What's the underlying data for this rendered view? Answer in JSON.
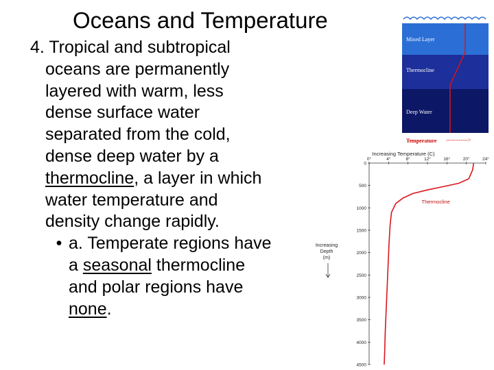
{
  "slide": {
    "title": "Oceans and Temperature",
    "point4": {
      "lead": "4. Tropical and subtropical",
      "lines": [
        "oceans are permanently",
        "layered with warm, less",
        "dense surface water",
        "separated from the cold,",
        "dense deep water by a"
      ],
      "term_thermocline": "thermocline",
      "after_term": ", a layer in which",
      "lines_after": [
        "water temperature and",
        "density change rapidly."
      ]
    },
    "sub_a": {
      "bullet": "•",
      "line1": "a. Temperate regions have",
      "line2_pre": "a ",
      "term_seasonal": "seasonal",
      "line2_post": " thermocline",
      "line3": "and polar regions have",
      "term_none": "none",
      "line4_post": "."
    }
  },
  "layer_diagram": {
    "layers": [
      "Mixed Layer",
      "Thermocline",
      "Deep Water"
    ],
    "temperature_label": "Temperature",
    "temperature_arrow": "------------>",
    "colors": {
      "mixed": "#2b6fd6",
      "thermocline": "#1c2f9a",
      "deep": "#0c1766",
      "profile": "#d8151c",
      "wave": "#2b6fd6"
    }
  },
  "chart_data": {
    "type": "line",
    "title": "Increasing Temperature (C)",
    "ylabel": "Increasing Depth (m)",
    "x_ticks": [
      "0°",
      "4°",
      "8°",
      "12°",
      "16°",
      "20°",
      "24°"
    ],
    "y_ticks": [
      "0",
      "500",
      "1000",
      "1500",
      "2000",
      "2500",
      "3000",
      "3500",
      "4000",
      "4500"
    ],
    "xlim": [
      0,
      24
    ],
    "ylim": [
      4500,
      0
    ],
    "annotation": "Thermocline",
    "line_color": "#d8151c",
    "series": [
      {
        "x": [
          21.5,
          21.3,
          20.5,
          18.5,
          15.5,
          12,
          9,
          7,
          5.5,
          4.6,
          4.3,
          4.1,
          3.9,
          3.7,
          3.5,
          3.3,
          3.2,
          3.1
        ],
        "y": [
          0,
          150,
          350,
          450,
          520,
          600,
          680,
          780,
          900,
          1100,
          1400,
          1800,
          2300,
          2800,
          3300,
          3800,
          4200,
          4500
        ]
      }
    ]
  }
}
